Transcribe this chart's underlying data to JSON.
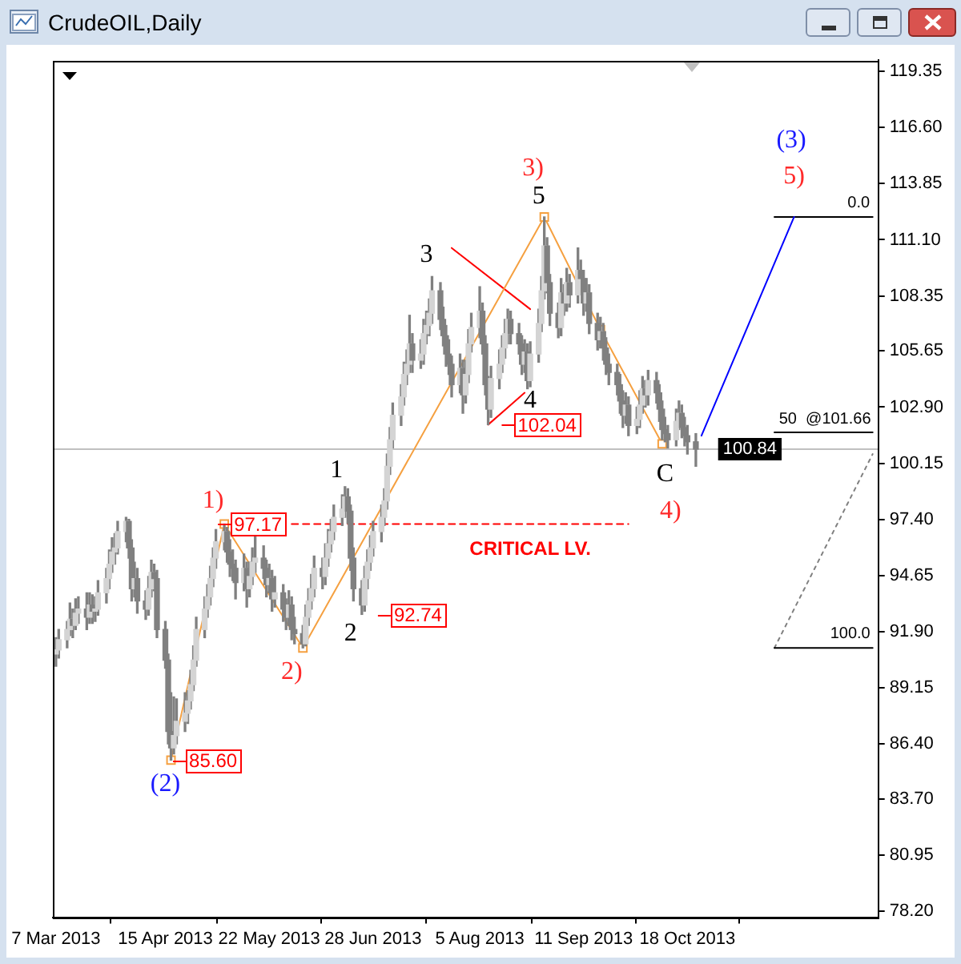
{
  "chart_data": {
    "type": "candlestick",
    "title": "CrudeOIL,Daily",
    "color": "#808080",
    "colors": [
      "#d4d4d4",
      "#d4d4d4",
      "#d4d4d4",
      "#d4d4d4",
      "#808080",
      "#d4d4d4",
      "#d4d4d4",
      "#808080",
      "#d4d4d4",
      "#808080",
      "#d4d4d4",
      "#d4d4d4",
      "#d4d4d4",
      "#d4d4d4",
      "#d4d4d4",
      "#d4d4d4",
      "#d4d4d4",
      "#d4d4d4",
      "#808080",
      "#808080",
      "#d4d4d4",
      "#808080",
      "#808080",
      "#d4d4d4",
      "#d4d4d4",
      "#808080",
      "#808080",
      "#808080",
      "#808080",
      "#808080",
      "#d4d4d4",
      "#d4d4d4",
      "#d4d4d4",
      "#d4d4d4",
      "#d4d4d4",
      "#d4d4d4",
      "#d4d4d4",
      "#d4d4d4",
      "#d4d4d4",
      "#d4d4d4",
      "#d4d4d4",
      "#d4d4d4",
      "#d4d4d4",
      "#808080",
      "#808080",
      "#808080",
      "#808080",
      "#d4d4d4",
      "#808080",
      "#d4d4d4",
      "#d4d4d4",
      "#d4d4d4",
      "#808080",
      "#808080",
      "#d4d4d4",
      "#808080",
      "#d4d4d4",
      "#808080",
      "#808080",
      "#d4d4d4",
      "#808080",
      "#808080",
      "#808080",
      "#d4d4d4",
      "#d4d4d4",
      "#d4d4d4",
      "#d4d4d4",
      "#808080",
      "#d4d4d4",
      "#d4d4d4",
      "#d4d4d4",
      "#d4d4d4",
      "#d4d4d4",
      "#d4d4d4",
      "#808080",
      "#808080",
      "#808080",
      "#808080",
      "#d4d4d4",
      "#d4d4d4",
      "#d4d4d4",
      "#d4d4d4",
      "#d4d4d4",
      "#d4d4d4",
      "#d4d4d4",
      "#d4d4d4",
      "#d4d4d4",
      "#d4d4d4",
      "#d4d4d4",
      "#d4d4d4",
      "#d4d4d4",
      "#808080",
      "#d4d4d4",
      "#d4d4d4",
      "#d4d4d4",
      "#d4d4d4",
      "#d4d4d4",
      "#808080",
      "#808080",
      "#808080",
      "#808080",
      "#808080",
      "#d4d4d4",
      "#808080",
      "#d4d4d4",
      "#d4d4d4",
      "#d4d4d4",
      "#d4d4d4",
      "#808080",
      "#808080",
      "#808080",
      "#d4d4d4",
      "#d4d4d4",
      "#d4d4d4",
      "#d4d4d4",
      "#d4d4d4",
      "#808080",
      "#808080",
      "#808080",
      "#d4d4d4",
      "#808080",
      "#d4d4d4",
      "#d4d4d4",
      "#d4d4d4",
      "#d4d4d4",
      "#808080",
      "#808080",
      "#808080",
      "#d4d4d4",
      "#808080",
      "#d4d4d4",
      "#808080",
      "#d4d4d4",
      "#808080",
      "#808080",
      "#d4d4d4",
      "#808080",
      "#808080",
      "#d4d4d4",
      "#808080",
      "#808080",
      "#808080",
      "#808080",
      "#808080",
      "#808080",
      "#d4d4d4",
      "#808080",
      "#d4d4d4",
      "#d4d4d4",
      "#d4d4d4",
      "#808080",
      "#d4d4d4",
      "#808080",
      "#808080",
      "#808080",
      "#808080",
      "#808080",
      "#d4d4d4",
      "#d4d4d4",
      "#808080",
      "#808080",
      "#808080",
      "#808080"
    ],
    "x": [
      "2013-03-07",
      "2013-03-08",
      "2013-03-11",
      "2013-03-12",
      "2013-03-13",
      "2013-03-14",
      "2013-03-15",
      "2013-03-18",
      "2013-03-19",
      "2013-03-20",
      "2013-03-21",
      "2013-03-22",
      "2013-03-25",
      "2013-03-26",
      "2013-03-27",
      "2013-03-28",
      "2013-03-29",
      "2013-04-01",
      "2013-04-02",
      "2013-04-03",
      "2013-04-04",
      "2013-04-05",
      "2013-04-08",
      "2013-04-09",
      "2013-04-10",
      "2013-04-11",
      "2013-04-12",
      "2013-04-15",
      "2013-04-16",
      "2013-04-17",
      "2013-04-18",
      "2013-04-19",
      "2013-04-22",
      "2013-04-23",
      "2013-04-24",
      "2013-04-25",
      "2013-04-26",
      "2013-04-29",
      "2013-04-30",
      "2013-05-01",
      "2013-05-02",
      "2013-05-03",
      "2013-05-06",
      "2013-05-07",
      "2013-05-08",
      "2013-05-09",
      "2013-05-10",
      "2013-05-13",
      "2013-05-14",
      "2013-05-15",
      "2013-05-16",
      "2013-05-17",
      "2013-05-20",
      "2013-05-21",
      "2013-05-22",
      "2013-05-23",
      "2013-05-24",
      "2013-05-27",
      "2013-05-28",
      "2013-05-29",
      "2013-05-30",
      "2013-05-31",
      "2013-06-03",
      "2013-06-04",
      "2013-06-05",
      "2013-06-06",
      "2013-06-07",
      "2013-06-10",
      "2013-06-11",
      "2013-06-12",
      "2013-06-13",
      "2013-06-14",
      "2013-06-17",
      "2013-06-18",
      "2013-06-19",
      "2013-06-20",
      "2013-06-21",
      "2013-06-24",
      "2013-06-25",
      "2013-06-26",
      "2013-06-27",
      "2013-06-28",
      "2013-07-01",
      "2013-07-02",
      "2013-07-03",
      "2013-07-04",
      "2013-07-05",
      "2013-07-08",
      "2013-07-09",
      "2013-07-10",
      "2013-07-11",
      "2013-07-12",
      "2013-07-15",
      "2013-07-16",
      "2013-07-17",
      "2013-07-18",
      "2013-07-19",
      "2013-07-22",
      "2013-07-23",
      "2013-07-24",
      "2013-07-25",
      "2013-07-26",
      "2013-07-29",
      "2013-07-30",
      "2013-07-31",
      "2013-08-01",
      "2013-08-02",
      "2013-08-05",
      "2013-08-06",
      "2013-08-07",
      "2013-08-08",
      "2013-08-09",
      "2013-08-12",
      "2013-08-13",
      "2013-08-14",
      "2013-08-15",
      "2013-08-16",
      "2013-08-19",
      "2013-08-20",
      "2013-08-21",
      "2013-08-22",
      "2013-08-23",
      "2013-08-26",
      "2013-08-27",
      "2013-08-28",
      "2013-08-29",
      "2013-08-30",
      "2013-09-02",
      "2013-09-03",
      "2013-09-04",
      "2013-09-05",
      "2013-09-06",
      "2013-09-09",
      "2013-09-10",
      "2013-09-11",
      "2013-09-12",
      "2013-09-13",
      "2013-09-16",
      "2013-09-17",
      "2013-09-18",
      "2013-09-19",
      "2013-09-20",
      "2013-09-23",
      "2013-09-24",
      "2013-09-25",
      "2013-09-26",
      "2013-09-27",
      "2013-09-30",
      "2013-10-01",
      "2013-10-02",
      "2013-10-03",
      "2013-10-04",
      "2013-10-07",
      "2013-10-08",
      "2013-10-09",
      "2013-10-10",
      "2013-10-11",
      "2013-10-14",
      "2013-10-15",
      "2013-10-16",
      "2013-10-17",
      "2013-10-18",
      "2013-10-21"
    ],
    "ohlc": [
      [
        90.8,
        91.6,
        90.2,
        91.0
      ],
      [
        91.0,
        92.0,
        90.6,
        91.5
      ],
      [
        91.5,
        92.4,
        91.1,
        92.0
      ],
      [
        92.0,
        93.3,
        91.7,
        92.5
      ],
      [
        92.5,
        93.0,
        91.6,
        92.2
      ],
      [
        92.2,
        93.5,
        92.0,
        92.8
      ],
      [
        92.8,
        93.6,
        92.3,
        93.0
      ],
      [
        93.0,
        93.8,
        92.0,
        92.6
      ],
      [
        92.6,
        93.8,
        92.3,
        93.2
      ],
      [
        93.2,
        93.7,
        92.3,
        92.9
      ],
      [
        92.9,
        93.6,
        92.4,
        93.0
      ],
      [
        93.0,
        94.4,
        92.7,
        93.8
      ],
      [
        93.8,
        95.0,
        93.3,
        94.5
      ],
      [
        94.5,
        95.9,
        94.0,
        95.2
      ],
      [
        95.2,
        96.5,
        94.8,
        95.8
      ],
      [
        95.8,
        96.7,
        95.2,
        96.0
      ],
      [
        96.0,
        97.3,
        95.7,
        96.8
      ],
      [
        96.8,
        97.5,
        96.3,
        97.3
      ],
      [
        97.3,
        97.4,
        95.5,
        96.0
      ],
      [
        96.0,
        96.4,
        93.4,
        94.0
      ],
      [
        94.0,
        95.3,
        93.6,
        94.5
      ],
      [
        94.5,
        95.0,
        92.8,
        93.4
      ],
      [
        93.4,
        93.9,
        92.5,
        93.0
      ],
      [
        93.0,
        94.6,
        92.7,
        94.0
      ],
      [
        94.0,
        95.4,
        93.6,
        94.8
      ],
      [
        94.8,
        95.2,
        93.9,
        94.5
      ],
      [
        94.5,
        94.9,
        91.6,
        92.0
      ],
      [
        92.0,
        92.4,
        90.1,
        90.5
      ],
      [
        90.5,
        90.8,
        86.4,
        87.0
      ],
      [
        87.0,
        88.9,
        85.6,
        86.2
      ],
      [
        86.2,
        88.7,
        85.9,
        86.8
      ],
      [
        86.8,
        88.6,
        86.4,
        87.5
      ],
      [
        87.5,
        88.9,
        87.0,
        87.9
      ],
      [
        87.9,
        89.0,
        87.4,
        88.5
      ],
      [
        88.5,
        90.0,
        88.1,
        89.3
      ],
      [
        89.3,
        91.2,
        89.0,
        90.5
      ],
      [
        90.5,
        92.6,
        90.2,
        92.0
      ],
      [
        92.0,
        93.6,
        91.6,
        93.0
      ],
      [
        93.0,
        94.2,
        92.6,
        93.6
      ],
      [
        93.6,
        95.1,
        93.2,
        94.5
      ],
      [
        94.5,
        96.0,
        94.1,
        95.5
      ],
      [
        95.5,
        96.9,
        95.0,
        96.3
      ],
      [
        96.3,
        97.17,
        95.9,
        96.8
      ],
      [
        96.8,
        97.0,
        95.3,
        95.8
      ],
      [
        95.8,
        96.4,
        94.6,
        95.2
      ],
      [
        95.2,
        95.9,
        94.4,
        95.0
      ],
      [
        95.0,
        95.4,
        93.5,
        94.3
      ],
      [
        94.3,
        95.7,
        93.9,
        95.0
      ],
      [
        95.0,
        95.3,
        93.1,
        94.0
      ],
      [
        94.0,
        95.3,
        93.6,
        94.6
      ],
      [
        94.6,
        96.0,
        94.2,
        95.3
      ],
      [
        95.3,
        96.7,
        94.8,
        95.5
      ],
      [
        95.5,
        96.1,
        94.5,
        95.0
      ],
      [
        95.0,
        95.4,
        93.6,
        94.2
      ],
      [
        94.2,
        95.2,
        93.8,
        94.5
      ],
      [
        94.5,
        94.9,
        92.9,
        93.5
      ],
      [
        93.5,
        94.6,
        93.1,
        93.8
      ],
      [
        93.8,
        94.2,
        92.4,
        93.0
      ],
      [
        93.0,
        93.5,
        92.0,
        92.6
      ],
      [
        92.6,
        93.9,
        92.2,
        93.2
      ],
      [
        93.2,
        93.6,
        91.5,
        92.0
      ],
      [
        92.0,
        92.6,
        91.3,
        91.8
      ],
      [
        91.8,
        92.2,
        91.1,
        91.3
      ],
      [
        91.3,
        93.2,
        91.2,
        92.6
      ],
      [
        92.6,
        94.0,
        92.2,
        93.4
      ],
      [
        93.4,
        94.7,
        93.0,
        94.0
      ],
      [
        94.0,
        95.6,
        93.6,
        95.0
      ],
      [
        95.0,
        95.5,
        94.0,
        94.6
      ],
      [
        94.6,
        96.2,
        94.2,
        95.5
      ],
      [
        95.5,
        96.9,
        95.1,
        96.2
      ],
      [
        96.2,
        97.4,
        95.8,
        96.8
      ],
      [
        96.8,
        98.1,
        96.4,
        97.5
      ],
      [
        97.5,
        98.6,
        97.1,
        97.9
      ],
      [
        97.9,
        99.0,
        97.5,
        98.5
      ],
      [
        98.5,
        98.9,
        97.2,
        97.8
      ],
      [
        97.8,
        98.1,
        94.9,
        95.5
      ],
      [
        95.5,
        96.0,
        93.4,
        94.0
      ],
      [
        94.0,
        94.4,
        92.74,
        93.2
      ],
      [
        93.2,
        95.1,
        92.9,
        94.5
      ],
      [
        94.5,
        95.9,
        94.0,
        95.3
      ],
      [
        95.3,
        96.6,
        94.9,
        96.0
      ],
      [
        96.0,
        97.3,
        95.6,
        96.8
      ],
      [
        96.8,
        98.1,
        96.3,
        97.5
      ],
      [
        97.5,
        98.9,
        97.1,
        98.3
      ],
      [
        98.3,
        100.6,
        97.9,
        100.0
      ],
      [
        100.0,
        101.9,
        99.6,
        101.3
      ],
      [
        101.3,
        103.1,
        100.9,
        102.5
      ],
      [
        102.5,
        104.0,
        102.0,
        103.4
      ],
      [
        103.4,
        105.1,
        103.0,
        104.5
      ],
      [
        104.5,
        105.7,
        104.0,
        105.0
      ],
      [
        105.0,
        107.4,
        104.6,
        106.0
      ],
      [
        106.0,
        106.5,
        104.6,
        105.2
      ],
      [
        105.2,
        106.2,
        104.8,
        105.5
      ],
      [
        105.5,
        107.2,
        105.0,
        106.5
      ],
      [
        106.5,
        107.6,
        106.0,
        106.9
      ],
      [
        106.9,
        108.2,
        106.4,
        107.5
      ],
      [
        107.5,
        109.3,
        107.0,
        108.6
      ],
      [
        108.6,
        109.0,
        106.7,
        107.2
      ],
      [
        107.2,
        107.8,
        105.9,
        106.4
      ],
      [
        106.4,
        106.9,
        104.9,
        105.5
      ],
      [
        105.5,
        106.2,
        104.5,
        105.0
      ],
      [
        105.0,
        105.4,
        103.4,
        104.0
      ],
      [
        104.0,
        105.5,
        103.6,
        104.8
      ],
      [
        104.8,
        105.2,
        102.6,
        103.5
      ],
      [
        103.5,
        105.2,
        103.1,
        104.5
      ],
      [
        104.5,
        106.7,
        104.1,
        106.0
      ],
      [
        106.0,
        107.5,
        105.6,
        106.8
      ],
      [
        106.8,
        108.8,
        106.3,
        107.6
      ],
      [
        107.6,
        108.0,
        105.5,
        106.0
      ],
      [
        106.0,
        106.4,
        103.5,
        104.0
      ],
      [
        104.0,
        104.4,
        102.04,
        102.8
      ],
      [
        102.8,
        104.9,
        102.4,
        104.3
      ],
      [
        104.3,
        105.7,
        103.8,
        105.0
      ],
      [
        105.0,
        106.4,
        104.6,
        105.8
      ],
      [
        105.8,
        107.2,
        105.3,
        106.5
      ],
      [
        106.5,
        107.7,
        106.0,
        107.2
      ],
      [
        107.2,
        107.6,
        106.0,
        106.5
      ],
      [
        106.5,
        107.0,
        105.5,
        106.0
      ],
      [
        106.0,
        106.4,
        104.5,
        105.0
      ],
      [
        105.0,
        106.2,
        104.6,
        105.6
      ],
      [
        105.6,
        106.0,
        103.8,
        104.2
      ],
      [
        104.2,
        106.1,
        103.9,
        105.5
      ],
      [
        105.5,
        107.7,
        105.1,
        107.0
      ],
      [
        107.0,
        109.3,
        106.6,
        108.6
      ],
      [
        108.6,
        112.22,
        108.2,
        110.8
      ],
      [
        110.8,
        111.2,
        108.5,
        109.0
      ],
      [
        109.0,
        109.4,
        106.9,
        107.5
      ],
      [
        107.5,
        108.0,
        106.3,
        106.8
      ],
      [
        106.8,
        109.2,
        106.4,
        108.5
      ],
      [
        108.5,
        108.9,
        107.4,
        108.0
      ],
      [
        108.0,
        109.7,
        107.6,
        109.0
      ],
      [
        109.0,
        109.4,
        107.8,
        108.4
      ],
      [
        108.4,
        110.7,
        108.0,
        109.6
      ],
      [
        109.6,
        110.1,
        108.7,
        109.2
      ],
      [
        109.2,
        109.6,
        107.4,
        108.0
      ],
      [
        108.0,
        109.2,
        107.6,
        108.5
      ],
      [
        108.5,
        108.9,
        106.5,
        107.0
      ],
      [
        107.0,
        107.5,
        105.7,
        106.2
      ],
      [
        106.2,
        107.3,
        105.8,
        106.6
      ],
      [
        106.6,
        107.0,
        105.2,
        105.8
      ],
      [
        105.8,
        106.3,
        104.5,
        105.0
      ],
      [
        105.0,
        105.5,
        104.0,
        104.6
      ],
      [
        104.6,
        105.0,
        103.5,
        104.0
      ],
      [
        104.0,
        104.5,
        102.6,
        103.2
      ],
      [
        103.2,
        103.7,
        101.9,
        102.5
      ],
      [
        102.5,
        103.6,
        102.1,
        103.0
      ],
      [
        103.0,
        103.4,
        101.5,
        102.0
      ],
      [
        102.0,
        102.9,
        101.6,
        102.3
      ],
      [
        102.3,
        103.7,
        101.9,
        103.0
      ],
      [
        103.0,
        104.4,
        102.6,
        103.8
      ],
      [
        103.8,
        104.2,
        102.9,
        103.5
      ],
      [
        103.5,
        104.7,
        103.0,
        104.2
      ],
      [
        104.2,
        104.6,
        103.1,
        103.6
      ],
      [
        103.6,
        104.0,
        102.2,
        102.8
      ],
      [
        102.8,
        103.2,
        101.3,
        101.8
      ],
      [
        101.8,
        102.4,
        101.2,
        101.6
      ],
      [
        101.6,
        102.0,
        100.9,
        101.3
      ],
      [
        101.3,
        102.8,
        101.0,
        102.2
      ],
      [
        102.2,
        103.2,
        101.8,
        102.6
      ],
      [
        102.6,
        103.0,
        101.4,
        101.9
      ],
      [
        101.9,
        102.4,
        101.0,
        101.5
      ],
      [
        101.5,
        102.0,
        100.6,
        101.2
      ],
      [
        101.2,
        101.6,
        100.0,
        100.84
      ]
    ],
    "series": [
      {
        "type": "line",
        "color": "#f5a040",
        "marker": "square",
        "x": [
          "2013-04-17",
          "2013-05-06",
          "2013-06-03",
          "2013-08-28",
          "2013-09-17",
          "2013-10-09"
        ],
        "values": [
          85.6,
          97.17,
          91.1,
          112.22,
          106.7,
          101.1
        ]
      },
      {
        "type": "line",
        "color": "#ff0000",
        "line_style": "dashed",
        "x": [
          "2013-05-30",
          "2013-09-27"
        ],
        "values": [
          97.17,
          97.17
        ]
      },
      {
        "type": "line",
        "color": "#ff0000",
        "x": [
          "2013-07-26",
          "2013-08-23"
        ],
        "values": [
          110.7,
          107.7
        ]
      },
      {
        "type": "line",
        "color": "#ff0000",
        "x": [
          "2013-08-08",
          "2013-08-21"
        ],
        "values": [
          102.04,
          103.6
        ]
      },
      {
        "type": "line",
        "color": "#0000ff",
        "x": [
          "2013-10-23",
          "2013-11-25"
        ],
        "values": [
          101.5,
          112.22
        ]
      },
      {
        "type": "line",
        "color": "#000000",
        "x": [
          "2013-11-18",
          "2013-12-23"
        ],
        "values": [
          112.22,
          112.22
        ]
      },
      {
        "type": "line",
        "color": "#000000",
        "x": [
          "2013-11-18",
          "2013-12-23"
        ],
        "values": [
          101.66,
          101.66
        ]
      },
      {
        "type": "line",
        "color": "#000000",
        "x": [
          "2013-11-18",
          "2013-12-23"
        ],
        "values": [
          91.1,
          91.1
        ]
      },
      {
        "type": "line",
        "color": "#808080",
        "line_style": "dotted",
        "x": [
          "2013-11-18",
          "2013-12-23"
        ],
        "values": [
          91.1,
          100.6
        ]
      }
    ],
    "xlim": [
      "2013-03-06",
      "2013-12-25"
    ],
    "xticks": [
      {
        "value": "2013-03-07",
        "label": "7 Mar 2013"
      },
      {
        "value": "2013-04-15",
        "label": "15 Apr 2013"
      },
      {
        "value": "2013-05-22",
        "label": "22 May 2013"
      },
      {
        "value": "2013-06-28",
        "label": "28 Jun 2013"
      },
      {
        "value": "2013-08-05",
        "label": "5 Aug 2013"
      },
      {
        "value": "2013-09-11",
        "label": "11 Sep 2013"
      },
      {
        "value": "2013-10-18",
        "label": "18 Oct 2013"
      }
    ],
    "ylim": [
      77.9,
      119.9
    ],
    "yticks": [
      {
        "value": 78.2,
        "label": "78.20"
      },
      80.95,
      {
        "value": 83.7,
        "label": "83.70"
      },
      {
        "value": 86.4,
        "label": "86.40"
      },
      89.15,
      {
        "value": 91.9,
        "label": "91.90"
      },
      94.65,
      {
        "value": 97.4,
        "label": "97.40"
      },
      100.15,
      {
        "value": 102.9,
        "label": "102.90"
      },
      105.65,
      108.35,
      {
        "value": 111.1,
        "label": "111.10"
      },
      113.85,
      {
        "value": 116.6,
        "label": "116.60"
      },
      119.35
    ],
    "ref_lines": [
      {
        "axis": "y",
        "value": 100.84,
        "label": "100.84",
        "color": "#c0c0c0"
      }
    ],
    "annotations": [
      "(2)",
      "1)",
      "2)",
      "1",
      "2",
      "3",
      "4",
      "5",
      "3)",
      "C",
      "4)",
      "5)",
      "(3)",
      "97.17",
      "85.60",
      "92.74",
      "102.04",
      "CRITICAL LV.",
      "0.0",
      "50  @101.66",
      "100.0"
    ]
  }
}
